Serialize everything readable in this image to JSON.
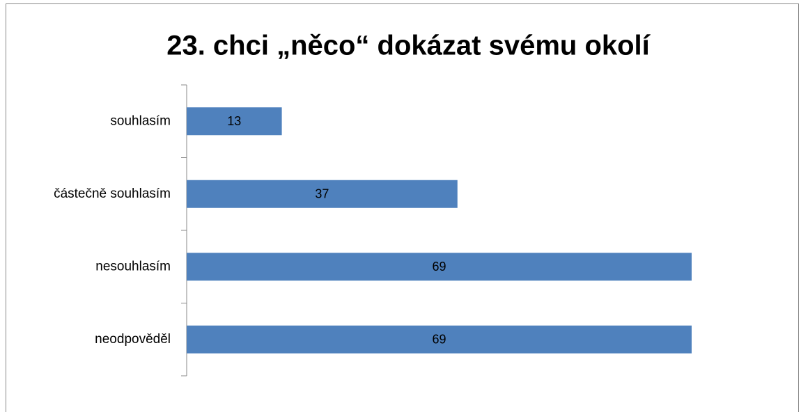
{
  "chart_data": {
    "type": "bar",
    "orientation": "horizontal",
    "title": "23. chci „něco“ dokázat svému okolí",
    "categories": [
      "souhlasím",
      "částečně souhlasím",
      "nesouhlasím",
      "neodpověděl"
    ],
    "values": [
      13,
      37,
      69,
      69
    ],
    "color": "#4f81bd"
  }
}
